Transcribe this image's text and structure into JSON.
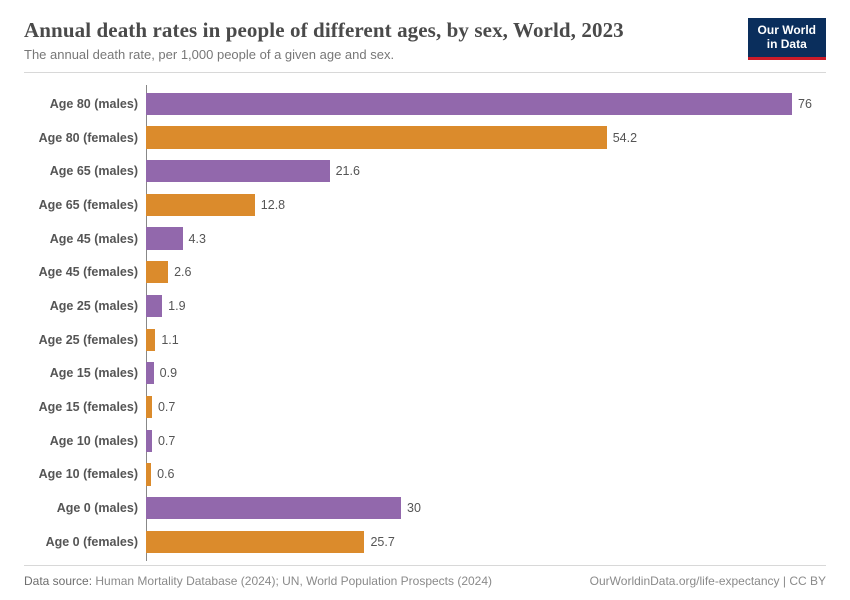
{
  "header": {
    "title": "Annual death rates in people of different ages, by sex, World, 2023",
    "subtitle": "The annual death rate, per 1,000 people of a given age and sex.",
    "logo_line1": "Our World",
    "logo_line2": "in Data"
  },
  "chart": {
    "type": "bar",
    "orientation": "horizontal",
    "xlim": [
      0,
      80
    ],
    "background_color": "#ffffff",
    "axis_line_color": "#888888",
    "label_fontsize": 12.5,
    "label_fontweight": 700,
    "label_color": "#555555",
    "value_fontsize": 12.5,
    "value_color": "#555555",
    "colors": {
      "males": "#9268ac",
      "females": "#db8b2c"
    },
    "rows": [
      {
        "label": "Age 80 (males)",
        "value": 76,
        "color_key": "males"
      },
      {
        "label": "Age 80 (females)",
        "value": 54.2,
        "color_key": "females"
      },
      {
        "label": "Age 65 (males)",
        "value": 21.6,
        "color_key": "males"
      },
      {
        "label": "Age 65 (females)",
        "value": 12.8,
        "color_key": "females"
      },
      {
        "label": "Age 45 (males)",
        "value": 4.3,
        "color_key": "males"
      },
      {
        "label": "Age 45 (females)",
        "value": 2.6,
        "color_key": "females"
      },
      {
        "label": "Age 25 (males)",
        "value": 1.9,
        "color_key": "males"
      },
      {
        "label": "Age 25 (females)",
        "value": 1.1,
        "color_key": "females"
      },
      {
        "label": "Age 15 (males)",
        "value": 0.9,
        "color_key": "males"
      },
      {
        "label": "Age 15 (females)",
        "value": 0.7,
        "color_key": "females"
      },
      {
        "label": "Age 10 (males)",
        "value": 0.7,
        "color_key": "males"
      },
      {
        "label": "Age 10 (females)",
        "value": 0.6,
        "color_key": "females"
      },
      {
        "label": "Age 0 (males)",
        "value": 30,
        "color_key": "males"
      },
      {
        "label": "Age 0 (females)",
        "value": 25.7,
        "color_key": "females"
      }
    ]
  },
  "footer": {
    "source_label": "Data source:",
    "source_text": "Human Mortality Database (2024); UN, World Population Prospects (2024)",
    "attribution": "OurWorldinData.org/life-expectancy | CC BY"
  }
}
